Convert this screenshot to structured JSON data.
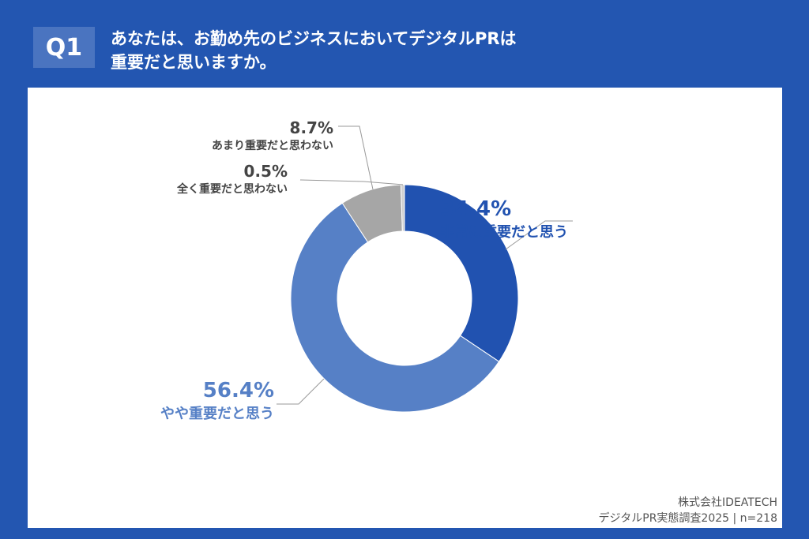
{
  "header": {
    "badge": "Q1",
    "title_line1": "あなたは、お勤め先のビジネスにおいてデジタルPRは",
    "title_line2": "重要だと思いますか。"
  },
  "chart_data": {
    "type": "pie",
    "donut": true,
    "categories": [
      "非常に重要だと思う",
      "やや重要だと思う",
      "あまり重要だと思わない",
      "全く重要だと思わない"
    ],
    "values": [
      34.4,
      56.4,
      8.7,
      0.5
    ],
    "value_labels": [
      "34.4%",
      "56.4%",
      "8.7%",
      "0.5%"
    ],
    "colors": [
      "#2152b0",
      "#5680c6",
      "#a6a6a6",
      "#d0d0d0"
    ],
    "label_colors": [
      "#2152b0",
      "#5680c6",
      "#444444",
      "#444444"
    ]
  },
  "footer": {
    "company": "株式会社IDEATECH",
    "survey": "デジタルPR実態調査2025 | n=218"
  }
}
